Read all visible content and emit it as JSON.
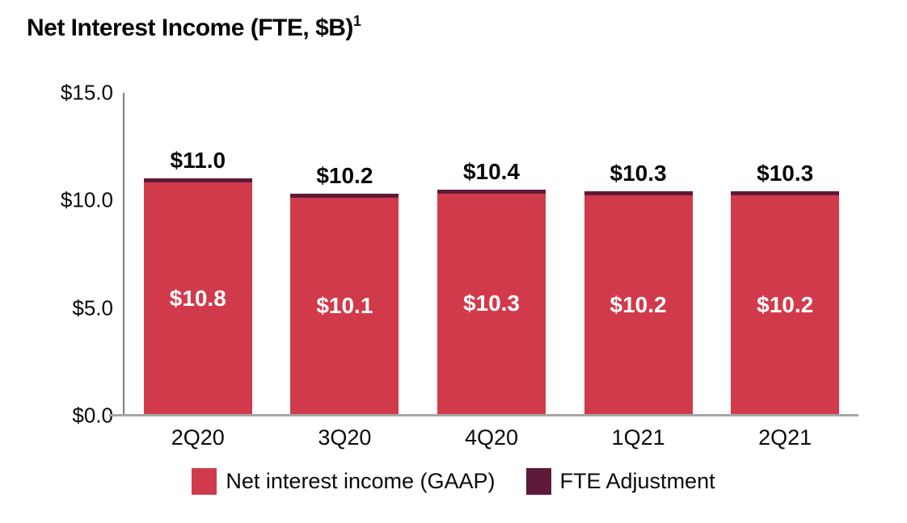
{
  "title": {
    "text": "Net Interest Income (FTE, $B)",
    "superscript": "1"
  },
  "colors": {
    "gaap_red": "#D13A4A",
    "fte_maroon": "#5E1A38",
    "y_axis_line": "#7F7F7F",
    "x_axis_line": "#A6A6A6",
    "in_bar_text": "#FFFFFF",
    "text": "#070707"
  },
  "chart_data": {
    "type": "bar",
    "stacked": true,
    "title": "Net Interest Income (FTE, $B)",
    "footnote_marker": "1",
    "categories": [
      "2Q20",
      "3Q20",
      "4Q20",
      "1Q21",
      "2Q21"
    ],
    "series": [
      {
        "name": "Net interest income (GAAP)",
        "color": "#D13A4A",
        "values": [
          10.8,
          10.1,
          10.3,
          10.2,
          10.2
        ]
      },
      {
        "name": "FTE Adjustment",
        "color": "#5E1A38",
        "values": [
          0.2,
          0.1,
          0.1,
          0.1,
          0.1
        ]
      }
    ],
    "totals": [
      11.0,
      10.2,
      10.4,
      10.3,
      10.3
    ],
    "total_labels": [
      "$11.0",
      "$10.2",
      "$10.4",
      "$10.3",
      "$10.3"
    ],
    "gaap_labels": [
      "$10.8",
      "$10.1",
      "$10.3",
      "$10.2",
      "$10.2"
    ],
    "xlabel": "",
    "ylabel": "",
    "ylim": [
      0,
      15
    ],
    "y_ticks": [
      {
        "label": "$15.0",
        "value": 15.0
      },
      {
        "label": "$10.0",
        "value": 10.0
      },
      {
        "label": "$5.0",
        "value": 5.0
      },
      {
        "label": "$0.0",
        "value": 0.0
      }
    ],
    "grid": false,
    "legend_position": "bottom"
  },
  "legend": {
    "items": [
      {
        "label": "Net interest income (GAAP)"
      },
      {
        "label": "FTE Adjustment"
      }
    ]
  }
}
